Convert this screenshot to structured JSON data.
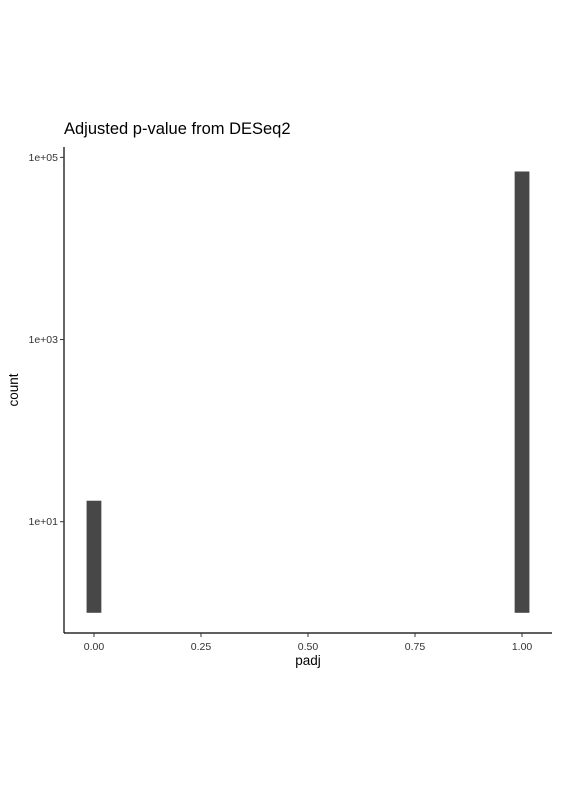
{
  "chart_data": {
    "type": "bar",
    "title": "Adjusted p-value from DESeq2",
    "xlabel": "padj",
    "ylabel": "count",
    "y_scale": "log10",
    "x_ticks": [
      0,
      0.25,
      0.5,
      0.75,
      1
    ],
    "x_tick_labels": [
      "0.00",
      "0.25",
      "0.50",
      "0.75",
      "1.00"
    ],
    "y_ticks": [
      10,
      1000,
      100000
    ],
    "y_tick_labels": [
      "1e+01",
      "1e+03",
      "1e+05"
    ],
    "xlim": [
      -0.07,
      1.07
    ],
    "ylim": [
      0.6,
      130000
    ],
    "grid": false,
    "legend": "none",
    "bar_color": "#474747",
    "bin_width": 0.0345,
    "series": [
      {
        "x": [
          0.0,
          1.0
        ],
        "values": [
          17,
          70000
        ]
      }
    ]
  }
}
